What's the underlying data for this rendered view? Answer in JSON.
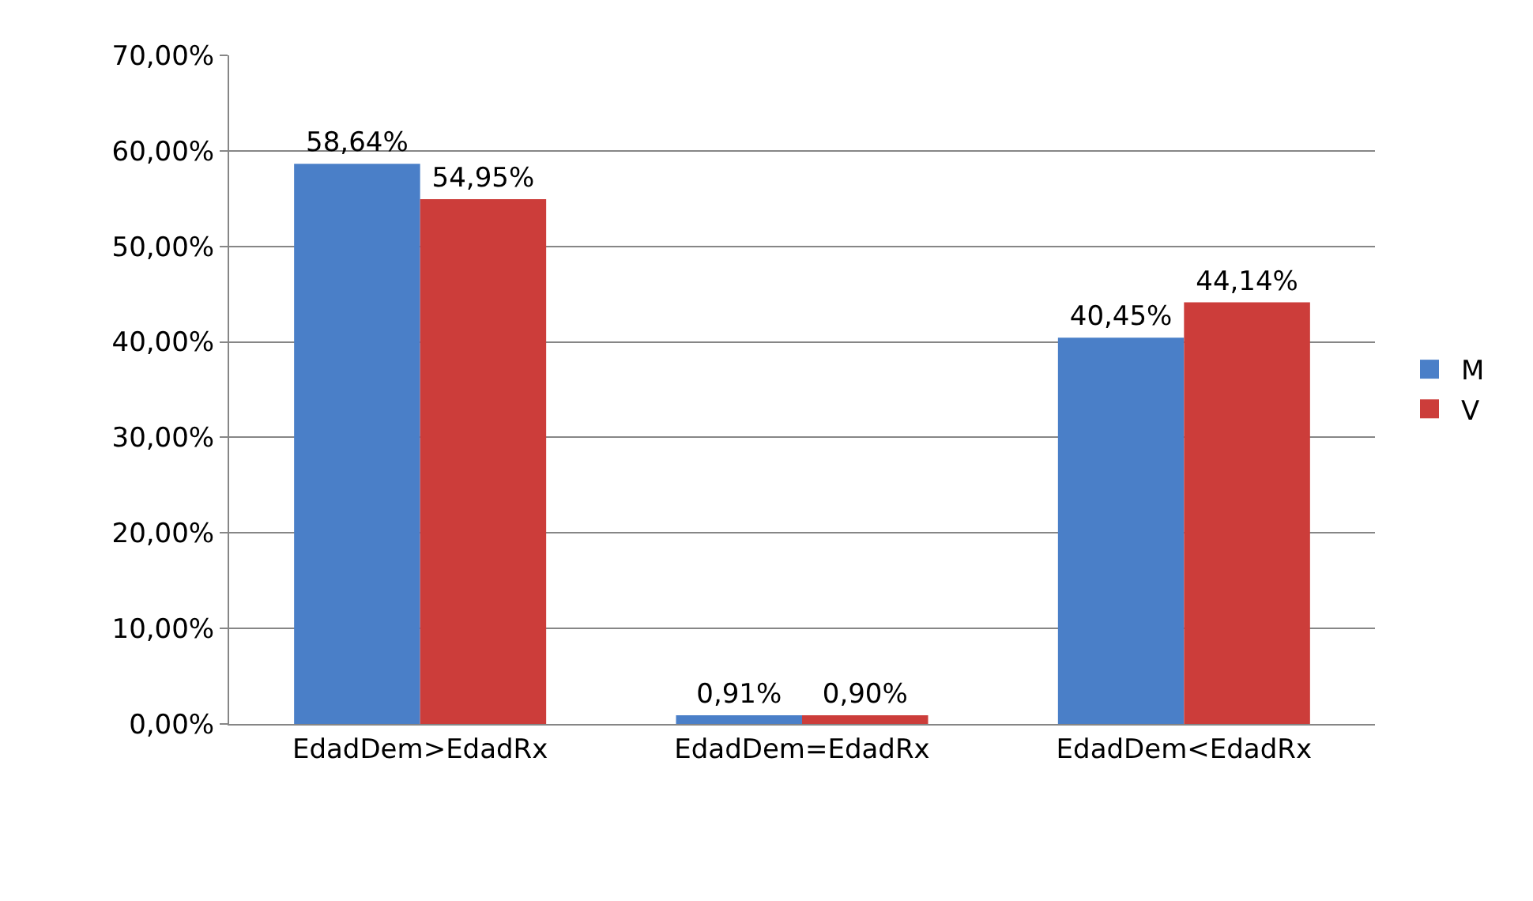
{
  "chart_data": {
    "type": "bar",
    "categories": [
      "EdadDem>EdadRx",
      "EdadDem=EdadRx",
      "EdadDem<EdadRx"
    ],
    "series": [
      {
        "name": "M",
        "color": "#4a7fc8",
        "values": [
          58.64,
          0.91,
          40.45
        ],
        "value_labels": [
          "58,64%",
          "0,91%",
          "40,45%"
        ]
      },
      {
        "name": "V",
        "color": "#cc3d3a",
        "values": [
          54.95,
          0.9,
          44.14
        ],
        "value_labels": [
          "54,95%",
          "0,90%",
          "44,14%"
        ]
      }
    ],
    "ylim": [
      0,
      70
    ],
    "yticks": [
      {
        "value": 0,
        "label": "0,00%"
      },
      {
        "value": 10,
        "label": "10,00%"
      },
      {
        "value": 20,
        "label": "20,00%"
      },
      {
        "value": 30,
        "label": "30,00%"
      },
      {
        "value": 40,
        "label": "40,00%"
      },
      {
        "value": 50,
        "label": "50,00%"
      },
      {
        "value": 60,
        "label": "60,00%"
      },
      {
        "value": 70,
        "label": "70,00%"
      }
    ],
    "grid": "y",
    "legend": "right"
  }
}
